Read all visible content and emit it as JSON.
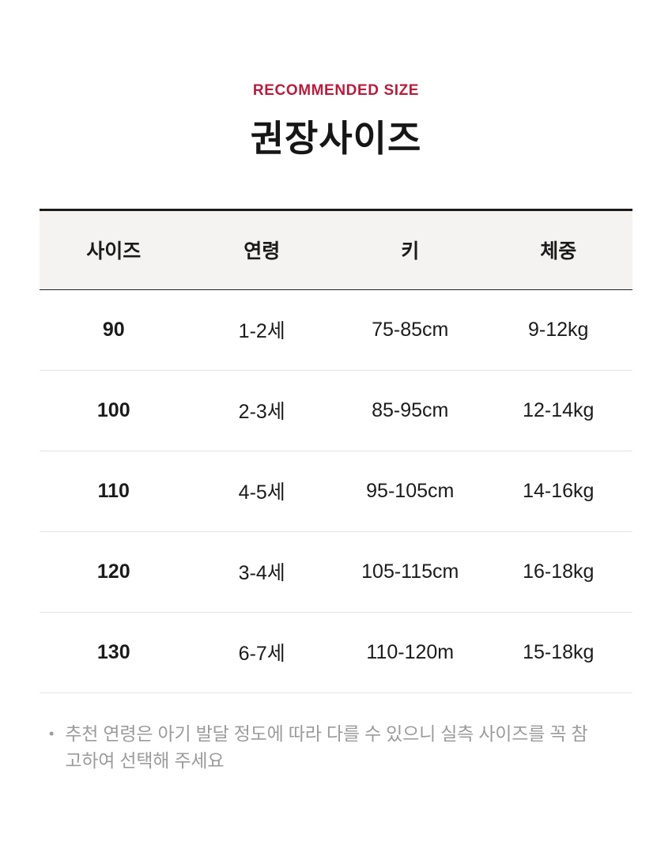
{
  "header": {
    "eyebrow": "RECOMMENDED SIZE",
    "title": "권장사이즈"
  },
  "size_table": {
    "columns": [
      "사이즈",
      "연령",
      "키",
      "체중"
    ],
    "rows": [
      {
        "size": "90",
        "age": "1-2세",
        "height": "75-85cm",
        "weight": "9-12kg"
      },
      {
        "size": "100",
        "age": "2-3세",
        "height": "85-95cm",
        "weight": "12-14kg"
      },
      {
        "size": "110",
        "age": "4-5세",
        "height": "95-105cm",
        "weight": "14-16kg"
      },
      {
        "size": "120",
        "age": "3-4세",
        "height": "105-115cm",
        "weight": "16-18kg"
      },
      {
        "size": "130",
        "age": "6-7세",
        "height": "110-120m",
        "weight": "15-18kg"
      }
    ]
  },
  "note": {
    "bullet": "•",
    "text": "추천 연령은 아기 발달 정도에 따라 다를 수 있으니 실측 사이즈를 꼭 참고하여 선택해 주세요"
  },
  "colors": {
    "accent_red": "#b91c3c",
    "text_dark": "#1b1b1b",
    "header_row_bg": "#f4f3f1",
    "divider_light": "#e3e3e3",
    "divider_dark": "#1b1b1b",
    "note_gray": "#9b9b9b"
  }
}
